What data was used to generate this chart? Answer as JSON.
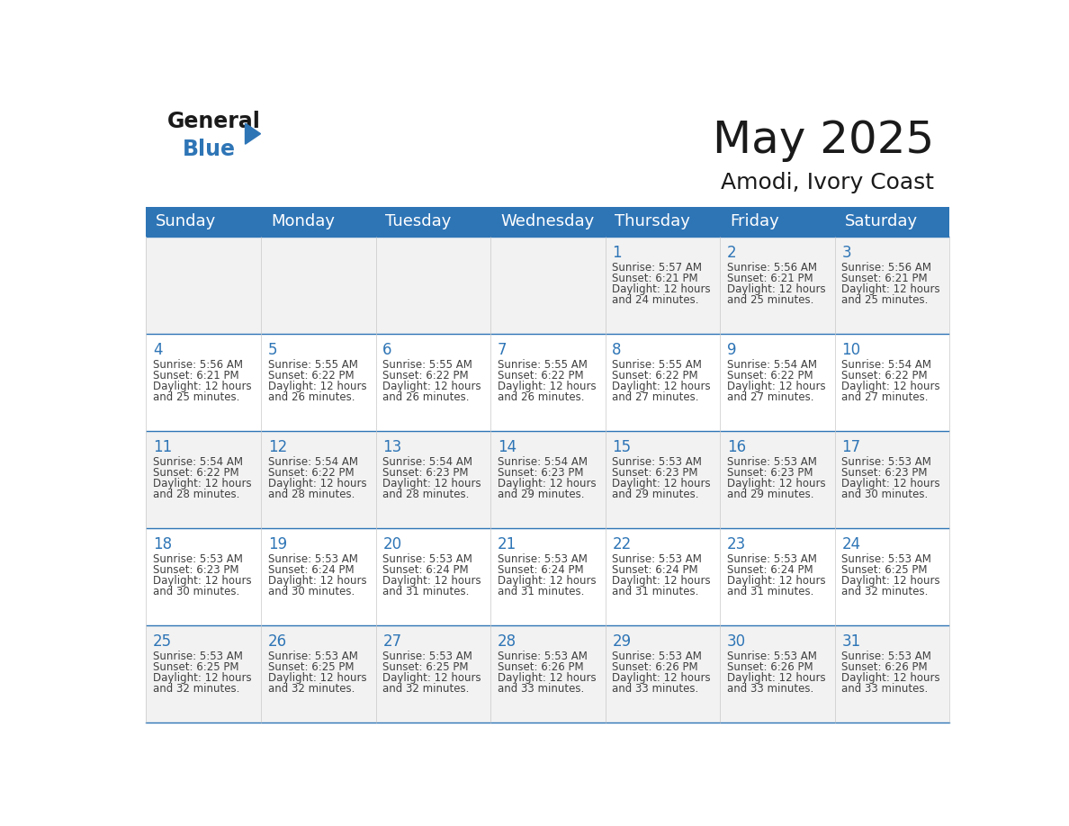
{
  "title": "May 2025",
  "subtitle": "Amodi, Ivory Coast",
  "days_of_week": [
    "Sunday",
    "Monday",
    "Tuesday",
    "Wednesday",
    "Thursday",
    "Friday",
    "Saturday"
  ],
  "header_bg": "#2E75B6",
  "header_text": "#FFFFFF",
  "cell_bg_light": "#F2F2F2",
  "cell_bg_white": "#FFFFFF",
  "cell_border_color": "#2E75B6",
  "day_number_color": "#2E75B6",
  "text_color": "#404040",
  "calendar_data": [
    [
      null,
      null,
      null,
      null,
      {
        "day": 1,
        "sunrise": "5:57 AM",
        "sunset": "6:21 PM",
        "daylight": "12 hours and 24 minutes."
      },
      {
        "day": 2,
        "sunrise": "5:56 AM",
        "sunset": "6:21 PM",
        "daylight": "12 hours and 25 minutes."
      },
      {
        "day": 3,
        "sunrise": "5:56 AM",
        "sunset": "6:21 PM",
        "daylight": "12 hours and 25 minutes."
      }
    ],
    [
      {
        "day": 4,
        "sunrise": "5:56 AM",
        "sunset": "6:21 PM",
        "daylight": "12 hours and 25 minutes."
      },
      {
        "day": 5,
        "sunrise": "5:55 AM",
        "sunset": "6:22 PM",
        "daylight": "12 hours and 26 minutes."
      },
      {
        "day": 6,
        "sunrise": "5:55 AM",
        "sunset": "6:22 PM",
        "daylight": "12 hours and 26 minutes."
      },
      {
        "day": 7,
        "sunrise": "5:55 AM",
        "sunset": "6:22 PM",
        "daylight": "12 hours and 26 minutes."
      },
      {
        "day": 8,
        "sunrise": "5:55 AM",
        "sunset": "6:22 PM",
        "daylight": "12 hours and 27 minutes."
      },
      {
        "day": 9,
        "sunrise": "5:54 AM",
        "sunset": "6:22 PM",
        "daylight": "12 hours and 27 minutes."
      },
      {
        "day": 10,
        "sunrise": "5:54 AM",
        "sunset": "6:22 PM",
        "daylight": "12 hours and 27 minutes."
      }
    ],
    [
      {
        "day": 11,
        "sunrise": "5:54 AM",
        "sunset": "6:22 PM",
        "daylight": "12 hours and 28 minutes."
      },
      {
        "day": 12,
        "sunrise": "5:54 AM",
        "sunset": "6:22 PM",
        "daylight": "12 hours and 28 minutes."
      },
      {
        "day": 13,
        "sunrise": "5:54 AM",
        "sunset": "6:23 PM",
        "daylight": "12 hours and 28 minutes."
      },
      {
        "day": 14,
        "sunrise": "5:54 AM",
        "sunset": "6:23 PM",
        "daylight": "12 hours and 29 minutes."
      },
      {
        "day": 15,
        "sunrise": "5:53 AM",
        "sunset": "6:23 PM",
        "daylight": "12 hours and 29 minutes."
      },
      {
        "day": 16,
        "sunrise": "5:53 AM",
        "sunset": "6:23 PM",
        "daylight": "12 hours and 29 minutes."
      },
      {
        "day": 17,
        "sunrise": "5:53 AM",
        "sunset": "6:23 PM",
        "daylight": "12 hours and 30 minutes."
      }
    ],
    [
      {
        "day": 18,
        "sunrise": "5:53 AM",
        "sunset": "6:23 PM",
        "daylight": "12 hours and 30 minutes."
      },
      {
        "day": 19,
        "sunrise": "5:53 AM",
        "sunset": "6:24 PM",
        "daylight": "12 hours and 30 minutes."
      },
      {
        "day": 20,
        "sunrise": "5:53 AM",
        "sunset": "6:24 PM",
        "daylight": "12 hours and 31 minutes."
      },
      {
        "day": 21,
        "sunrise": "5:53 AM",
        "sunset": "6:24 PM",
        "daylight": "12 hours and 31 minutes."
      },
      {
        "day": 22,
        "sunrise": "5:53 AM",
        "sunset": "6:24 PM",
        "daylight": "12 hours and 31 minutes."
      },
      {
        "day": 23,
        "sunrise": "5:53 AM",
        "sunset": "6:24 PM",
        "daylight": "12 hours and 31 minutes."
      },
      {
        "day": 24,
        "sunrise": "5:53 AM",
        "sunset": "6:25 PM",
        "daylight": "12 hours and 32 minutes."
      }
    ],
    [
      {
        "day": 25,
        "sunrise": "5:53 AM",
        "sunset": "6:25 PM",
        "daylight": "12 hours and 32 minutes."
      },
      {
        "day": 26,
        "sunrise": "5:53 AM",
        "sunset": "6:25 PM",
        "daylight": "12 hours and 32 minutes."
      },
      {
        "day": 27,
        "sunrise": "5:53 AM",
        "sunset": "6:25 PM",
        "daylight": "12 hours and 32 minutes."
      },
      {
        "day": 28,
        "sunrise": "5:53 AM",
        "sunset": "6:26 PM",
        "daylight": "12 hours and 33 minutes."
      },
      {
        "day": 29,
        "sunrise": "5:53 AM",
        "sunset": "6:26 PM",
        "daylight": "12 hours and 33 minutes."
      },
      {
        "day": 30,
        "sunrise": "5:53 AM",
        "sunset": "6:26 PM",
        "daylight": "12 hours and 33 minutes."
      },
      {
        "day": 31,
        "sunrise": "5:53 AM",
        "sunset": "6:26 PM",
        "daylight": "12 hours and 33 minutes."
      }
    ]
  ],
  "logo_general_color": "#1a1a1a",
  "logo_blue_color": "#2E75B6",
  "logo_triangle_color": "#2E75B6",
  "title_fontsize": 36,
  "subtitle_fontsize": 18,
  "header_fontsize": 13,
  "day_num_fontsize": 12,
  "cell_text_fontsize": 8.5
}
